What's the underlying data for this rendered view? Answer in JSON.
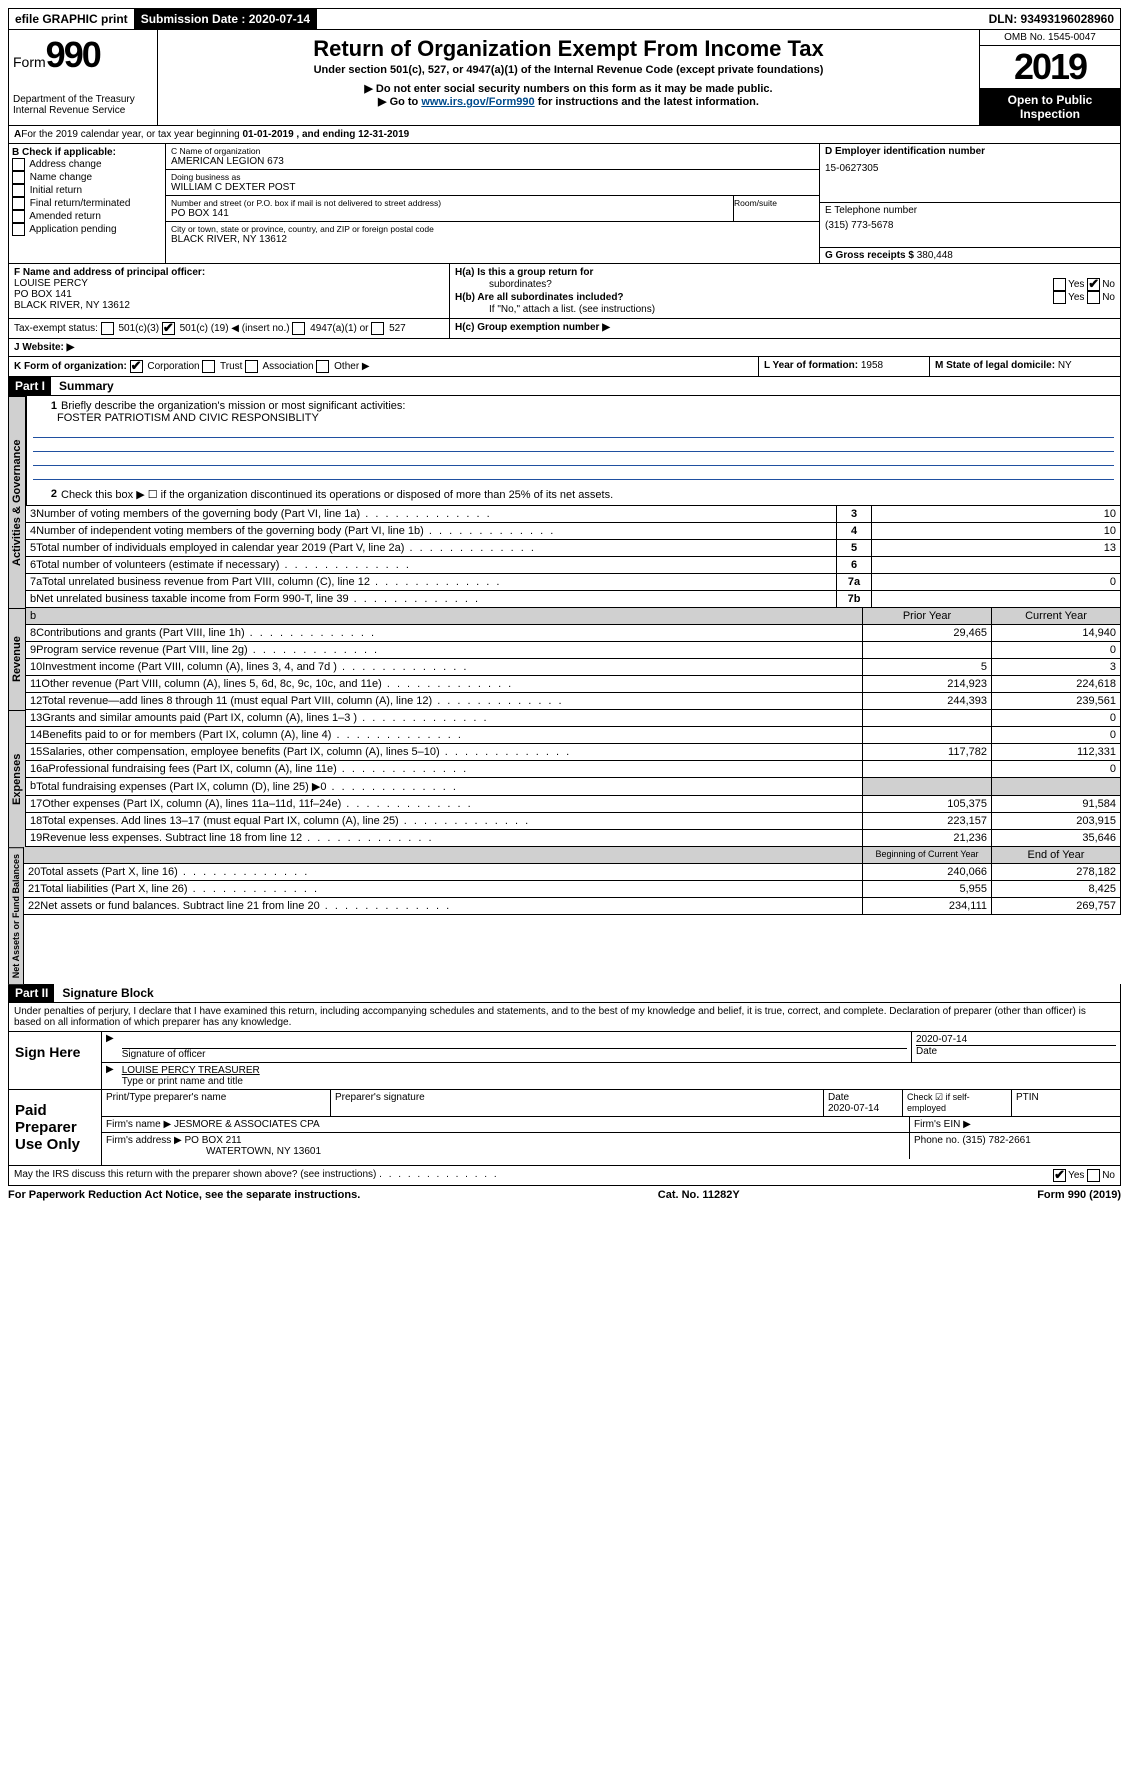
{
  "topbar": {
    "efile": "efile GRAPHIC print",
    "submission_label": "Submission Date :",
    "submission_date": "2020-07-14",
    "dln": "DLN: 93493196028960"
  },
  "header": {
    "form_prefix": "Form",
    "form_number": "990",
    "dept1": "Department of the Treasury",
    "dept2": "Internal Revenue Service",
    "title": "Return of Organization Exempt From Income Tax",
    "subtitle": "Under section 501(c), 527, or 4947(a)(1) of the Internal Revenue Code (except private foundations)",
    "note1": "▶ Do not enter social security numbers on this form as it may be made public.",
    "note2_pre": "▶ Go to ",
    "note2_link": "www.irs.gov/Form990",
    "note2_post": " for instructions and the latest information.",
    "omb": "OMB No. 1545-0047",
    "year": "2019",
    "inspect1": "Open to Public",
    "inspect2": "Inspection"
  },
  "period": {
    "text_a": "For the 2019 calendar year, or tax year beginning ",
    "begin": "01-01-2019",
    "text_b": " , and ending ",
    "end": "12-31-2019"
  },
  "boxB": {
    "title": "B Check if applicable:",
    "items": [
      "Address change",
      "Name change",
      "Initial return",
      "Final return/terminated",
      "Amended return",
      "Application pending"
    ]
  },
  "boxC": {
    "name_lbl": "C Name of organization",
    "name": "AMERICAN LEGION 673",
    "dba_lbl": "Doing business as",
    "dba": "WILLIAM C DEXTER POST",
    "addr_lbl": "Number and street (or P.O. box if mail is not delivered to street address)",
    "room_lbl": "Room/suite",
    "addr": "PO BOX 141",
    "city_lbl": "City or town, state or province, country, and ZIP or foreign postal code",
    "city": "BLACK RIVER, NY  13612"
  },
  "boxD": {
    "lbl": "D Employer identification number",
    "val": "15-0627305"
  },
  "boxE": {
    "lbl": "E Telephone number",
    "val": "(315) 773-5678"
  },
  "boxG": {
    "lbl": "G Gross receipts $",
    "val": "380,448"
  },
  "boxF": {
    "lbl": "F Name and address of principal officer:",
    "name": "LOUISE PERCY",
    "addr1": "PO BOX 141",
    "addr2": "BLACK RIVER, NY  13612"
  },
  "boxH": {
    "a": "H(a)  Is this a group return for",
    "a2": "subordinates?",
    "b": "H(b)  Are all subordinates included?",
    "b2": "If \"No,\" attach a list. (see instructions)",
    "c": "H(c)  Group exemption number ▶",
    "yes": "Yes",
    "no": "No"
  },
  "taxexempt": {
    "lbl": "Tax-exempt status:",
    "opt1": "501(c)(3)",
    "opt2a": "501(c) (",
    "opt2b": "19",
    "opt2c": ") ◀ (insert no.)",
    "opt3": "4947(a)(1) or",
    "opt4": "527"
  },
  "website": {
    "lbl": "J   Website: ▶"
  },
  "boxK": {
    "lbl": "K Form of organization:",
    "corp": "Corporation",
    "trust": "Trust",
    "assoc": "Association",
    "other": "Other ▶"
  },
  "boxL": {
    "lbl": "L Year of formation:",
    "val": "1958"
  },
  "boxM": {
    "lbl": "M State of legal domicile:",
    "val": "NY"
  },
  "part1": {
    "label": "Part I",
    "title": "Summary",
    "vtab1": "Activities & Governance",
    "vtab2": "Revenue",
    "vtab3": "Expenses",
    "vtab4": "Net Assets or Fund Balances",
    "q1": "Briefly describe the organization's mission or most significant activities:",
    "q1_ans": "FOSTER PATRIOTISM AND CIVIC RESPONSIBLITY",
    "q2": "Check this box ▶ ☐  if the organization discontinued its operations or disposed of more than 25% of its net assets.",
    "lines_gov": [
      {
        "n": "3",
        "d": "Number of voting members of the governing body (Part VI, line 1a)",
        "box": "3",
        "v": "10"
      },
      {
        "n": "4",
        "d": "Number of independent voting members of the governing body (Part VI, line 1b)",
        "box": "4",
        "v": "10"
      },
      {
        "n": "5",
        "d": "Total number of individuals employed in calendar year 2019 (Part V, line 2a)",
        "box": "5",
        "v": "13"
      },
      {
        "n": "6",
        "d": "Total number of volunteers (estimate if necessary)",
        "box": "6",
        "v": ""
      },
      {
        "n": "7a",
        "d": "Total unrelated business revenue from Part VIII, column (C), line 12",
        "box": "7a",
        "v": "0"
      },
      {
        "n": "b",
        "d": "Net unrelated business taxable income from Form 990-T, line 39",
        "box": "7b",
        "v": ""
      }
    ],
    "col_prior": "Prior Year",
    "col_current": "Current Year",
    "col_begin": "Beginning of Current Year",
    "col_end": "End of Year",
    "lines_rev": [
      {
        "n": "8",
        "d": "Contributions and grants (Part VIII, line 1h)",
        "p": "29,465",
        "c": "14,940"
      },
      {
        "n": "9",
        "d": "Program service revenue (Part VIII, line 2g)",
        "p": "",
        "c": "0"
      },
      {
        "n": "10",
        "d": "Investment income (Part VIII, column (A), lines 3, 4, and 7d )",
        "p": "5",
        "c": "3"
      },
      {
        "n": "11",
        "d": "Other revenue (Part VIII, column (A), lines 5, 6d, 8c, 9c, 10c, and 11e)",
        "p": "214,923",
        "c": "224,618"
      },
      {
        "n": "12",
        "d": "Total revenue—add lines 8 through 11 (must equal Part VIII, column (A), line 12)",
        "p": "244,393",
        "c": "239,561"
      }
    ],
    "lines_exp": [
      {
        "n": "13",
        "d": "Grants and similar amounts paid (Part IX, column (A), lines 1–3 )",
        "p": "",
        "c": "0"
      },
      {
        "n": "14",
        "d": "Benefits paid to or for members (Part IX, column (A), line 4)",
        "p": "",
        "c": "0"
      },
      {
        "n": "15",
        "d": "Salaries, other compensation, employee benefits (Part IX, column (A), lines 5–10)",
        "p": "117,782",
        "c": "112,331"
      },
      {
        "n": "16a",
        "d": "Professional fundraising fees (Part IX, column (A), line 11e)",
        "p": "",
        "c": "0"
      },
      {
        "n": "b",
        "d": "Total fundraising expenses (Part IX, column (D), line 25) ▶0",
        "p": "shade",
        "c": "shade"
      },
      {
        "n": "17",
        "d": "Other expenses (Part IX, column (A), lines 11a–11d, 11f–24e)",
        "p": "105,375",
        "c": "91,584"
      },
      {
        "n": "18",
        "d": "Total expenses. Add lines 13–17 (must equal Part IX, column (A), line 25)",
        "p": "223,157",
        "c": "203,915"
      },
      {
        "n": "19",
        "d": "Revenue less expenses. Subtract line 18 from line 12",
        "p": "21,236",
        "c": "35,646"
      }
    ],
    "lines_net": [
      {
        "n": "20",
        "d": "Total assets (Part X, line 16)",
        "p": "240,066",
        "c": "278,182"
      },
      {
        "n": "21",
        "d": "Total liabilities (Part X, line 26)",
        "p": "5,955",
        "c": "8,425"
      },
      {
        "n": "22",
        "d": "Net assets or fund balances. Subtract line 21 from line 20",
        "p": "234,111",
        "c": "269,757"
      }
    ]
  },
  "part2": {
    "label": "Part II",
    "title": "Signature Block",
    "penalty": "Under penalties of perjury, I declare that I have examined this return, including accompanying schedules and statements, and to the best of my knowledge and belief, it is true, correct, and complete. Declaration of preparer (other than officer) is based on all information of which preparer has any knowledge.",
    "sign_here": "Sign Here",
    "sig_officer": "Signature of officer",
    "sig_date": "2020-07-14",
    "date_lbl": "Date",
    "officer_name": "LOUISE PERCY TREASURER",
    "type_name": "Type or print name and title",
    "paid": "Paid Preparer Use Only",
    "prep_name_lbl": "Print/Type preparer's name",
    "prep_sig_lbl": "Preparer's signature",
    "prep_date_lbl": "Date",
    "prep_date": "2020-07-14",
    "check_self": "Check ☑ if self-employed",
    "ptin": "PTIN",
    "firm_name_lbl": "Firm's name      ▶",
    "firm_name": "JESMORE & ASSOCIATES CPA",
    "firm_ein_lbl": "Firm's EIN ▶",
    "firm_addr_lbl": "Firm's address ▶",
    "firm_addr": "PO BOX 211",
    "firm_city": "WATERTOWN, NY  13601",
    "firm_phone_lbl": "Phone no.",
    "firm_phone": "(315) 782-2661",
    "discuss": "May the IRS discuss this return with the preparer shown above? (see instructions)"
  },
  "footer": {
    "left": "For Paperwork Reduction Act Notice, see the separate instructions.",
    "mid": "Cat. No. 11282Y",
    "right": "Form 990 (2019)"
  }
}
